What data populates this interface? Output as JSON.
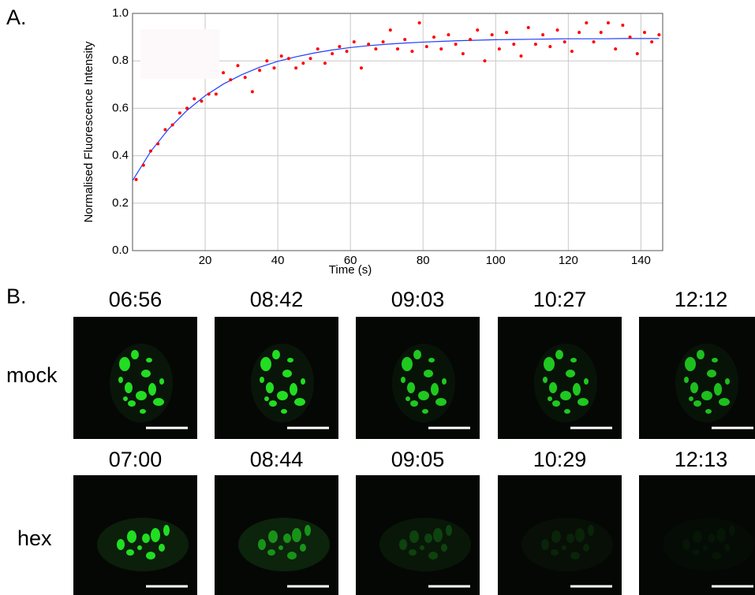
{
  "chart_data": {
    "type": "scatter",
    "xlabel": "Time (s)",
    "ylabel": "Normalised Fluorescence Intensity",
    "xlim": [
      0,
      146
    ],
    "ylim": [
      0,
      1
    ],
    "xticks": [
      20,
      40,
      60,
      80,
      100,
      120,
      140
    ],
    "yticks": [
      {
        "value": 0,
        "label": "0.0"
      },
      0.2,
      0.4,
      0.6,
      0.8,
      {
        "value": 1,
        "label": "1.0"
      }
    ],
    "grid": true,
    "series": [
      {
        "type": "scatter",
        "color": "#ff0000",
        "x": [
          1,
          3,
          5,
          7,
          9,
          11,
          13,
          15,
          17,
          19,
          21,
          23,
          25,
          27,
          29,
          31,
          33,
          35,
          37,
          39,
          41,
          43,
          45,
          47,
          49,
          51,
          53,
          55,
          57,
          59,
          61,
          63,
          65,
          67,
          69,
          71,
          73,
          75,
          77,
          79,
          81,
          83,
          85,
          87,
          89,
          91,
          93,
          95,
          97,
          99,
          101,
          103,
          105,
          107,
          109,
          111,
          113,
          115,
          117,
          119,
          121,
          123,
          125,
          127,
          129,
          131,
          133,
          135,
          137,
          139,
          141,
          143,
          145
        ],
        "values": [
          0.3,
          0.36,
          0.42,
          0.45,
          0.51,
          0.53,
          0.58,
          0.6,
          0.64,
          0.63,
          0.66,
          0.66,
          0.75,
          0.72,
          0.78,
          0.73,
          0.67,
          0.76,
          0.8,
          0.77,
          0.82,
          0.81,
          0.77,
          0.79,
          0.81,
          0.85,
          0.79,
          0.83,
          0.86,
          0.84,
          0.88,
          0.77,
          0.87,
          0.85,
          0.88,
          0.93,
          0.85,
          0.89,
          0.84,
          0.96,
          0.86,
          0.9,
          0.85,
          0.91,
          0.87,
          0.83,
          0.89,
          0.93,
          0.8,
          0.91,
          0.85,
          0.92,
          0.87,
          0.82,
          0.94,
          0.87,
          0.91,
          0.86,
          0.93,
          0.88,
          0.84,
          0.92,
          0.96,
          0.88,
          0.92,
          0.96,
          0.85,
          0.95,
          0.9,
          0.83,
          0.92,
          0.88,
          0.91
        ]
      },
      {
        "type": "line",
        "color": "#1f3fff",
        "x": [
          0,
          5,
          10,
          15,
          20,
          25,
          30,
          35,
          40,
          45,
          50,
          55,
          60,
          65,
          70,
          75,
          80,
          85,
          90,
          95,
          100,
          105,
          110,
          115,
          120,
          125,
          130,
          135,
          140,
          145
        ],
        "values": [
          0.295,
          0.418,
          0.514,
          0.591,
          0.653,
          0.702,
          0.741,
          0.773,
          0.798,
          0.817,
          0.833,
          0.846,
          0.856,
          0.864,
          0.87,
          0.875,
          0.879,
          0.882,
          0.885,
          0.887,
          0.889,
          0.89,
          0.891,
          0.892,
          0.893,
          0.893,
          0.893,
          0.894,
          0.894,
          0.894
        ]
      }
    ]
  },
  "panel_labels": [
    "A.",
    "B."
  ],
  "panel_b": {
    "rows": [
      {
        "label": "mock",
        "times": [
          "06:56",
          "08:42",
          "09:03",
          "10:27",
          "12:12"
        ]
      },
      {
        "label": "hex",
        "times": [
          "07:00",
          "08:44",
          "09:05",
          "10:29",
          "12:13"
        ]
      }
    ]
  }
}
